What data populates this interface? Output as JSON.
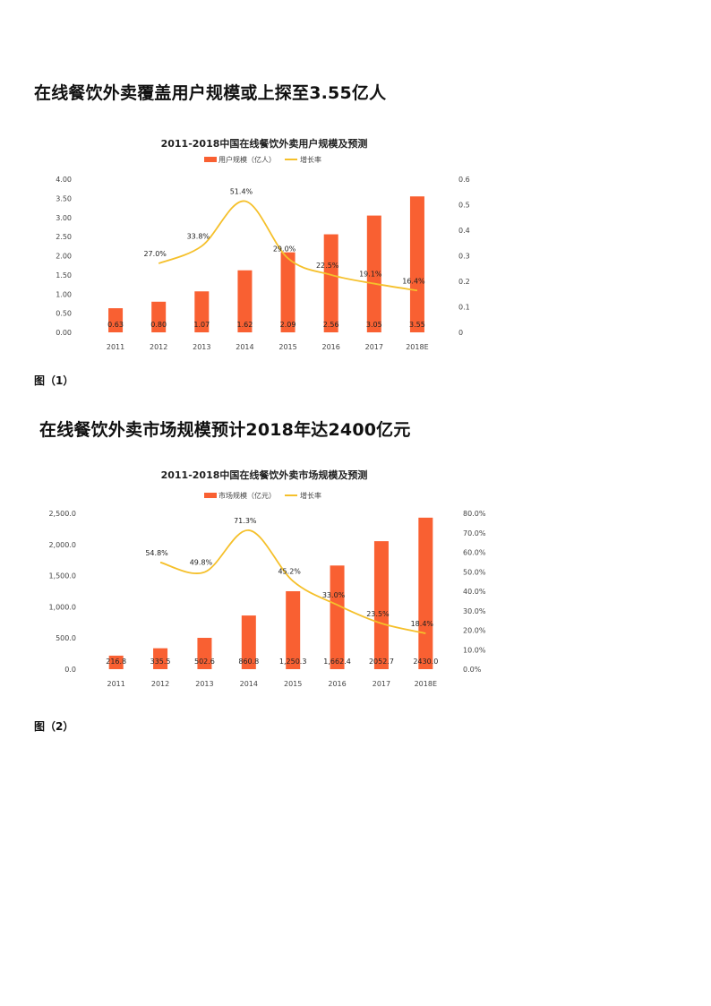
{
  "page": {
    "heading1": "在线餐饮外卖覆盖用户规模或上探至3.55亿人",
    "caption1": "图（1）",
    "heading2": "在线餐饮外卖市场规模预计2018年达2400亿元",
    "caption2": "图（2）"
  },
  "colors": {
    "bar": "#F96032",
    "line": "#F5C02B",
    "text": "#222222"
  },
  "chart_data": [
    {
      "type": "bar+line",
      "title": "2011-2018中国在线餐饮外卖用户规模及预测",
      "legend": [
        "用户规模（亿人）",
        "增长率"
      ],
      "legend_position": "top",
      "categories": [
        "2011",
        "2012",
        "2013",
        "2014",
        "2015",
        "2016",
        "2017",
        "2018E"
      ],
      "series": [
        {
          "name": "用户规模（亿人）",
          "type": "bar",
          "axis": "left",
          "values": [
            0.63,
            0.8,
            1.07,
            1.62,
            2.09,
            2.56,
            3.05,
            3.55
          ],
          "labels": [
            "0.63",
            "0.80",
            "1.07",
            "1.62",
            "2.09",
            "2.56",
            "3.05",
            "3.55"
          ]
        },
        {
          "name": "增长率",
          "type": "line",
          "axis": "right",
          "values": [
            null,
            0.27,
            0.338,
            0.514,
            0.29,
            0.225,
            0.191,
            0.164
          ],
          "labels": [
            "",
            "27.0%",
            "33.8%",
            "51.4%",
            "29.0%",
            "22.5%",
            "19.1%",
            "16.4%"
          ]
        }
      ],
      "y_left": {
        "range": [
          0,
          4
        ],
        "ticks": [
          "0.00",
          "0.50",
          "1.00",
          "1.50",
          "2.00",
          "2.50",
          "3.00",
          "3.50",
          "4.00"
        ]
      },
      "y_right": {
        "range": [
          0,
          0.6
        ],
        "ticks": [
          "0",
          "0.1",
          "0.2",
          "0.3",
          "0.4",
          "0.5",
          "0.6"
        ]
      },
      "grid": false
    },
    {
      "type": "bar+line",
      "title": "2011-2018中国在线餐饮外卖市场规模及预测",
      "legend": [
        "市场规模（亿元）",
        "增长率"
      ],
      "legend_position": "top",
      "categories": [
        "2011",
        "2012",
        "2013",
        "2014",
        "2015",
        "2016",
        "2017",
        "2018E"
      ],
      "series": [
        {
          "name": "市场规模（亿元）",
          "type": "bar",
          "axis": "left",
          "values": [
            216.8,
            335.5,
            502.6,
            860.8,
            1250.3,
            1662.4,
            2052.7,
            2430.0
          ],
          "labels": [
            "216.8",
            "335.5",
            "502.6",
            "860.8",
            "1,250.3",
            "1,662.4",
            "2052.7",
            "2430.0"
          ]
        },
        {
          "name": "增长率",
          "type": "line",
          "axis": "right",
          "values": [
            null,
            0.548,
            0.498,
            0.713,
            0.452,
            0.33,
            0.235,
            0.184
          ],
          "labels": [
            "",
            "54.8%",
            "49.8%",
            "71.3%",
            "45.2%",
            "33.0%",
            "23.5%",
            "18.4%"
          ]
        }
      ],
      "y_left": {
        "range": [
          0,
          2500
        ],
        "ticks": [
          "0.0",
          "500.0",
          "1,000.0",
          "1,500.0",
          "2,000.0",
          "2,500.0"
        ]
      },
      "y_right": {
        "range": [
          0,
          0.8
        ],
        "ticks": [
          "0.0%",
          "10.0%",
          "20.0%",
          "30.0%",
          "40.0%",
          "50.0%",
          "60.0%",
          "70.0%",
          "80.0%"
        ]
      },
      "grid": false
    }
  ]
}
